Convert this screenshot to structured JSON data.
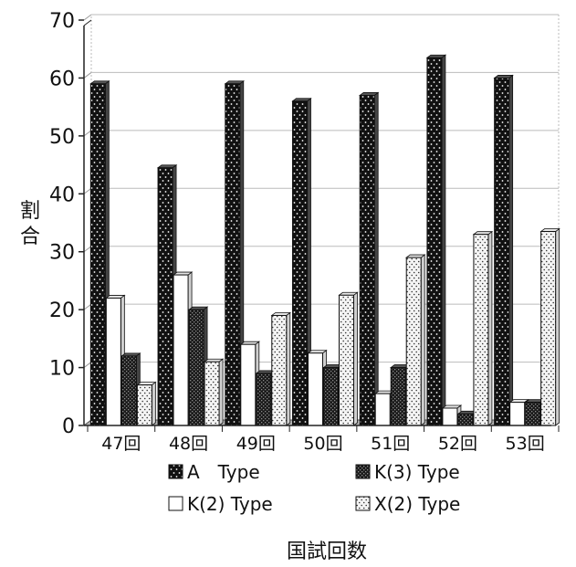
{
  "chart_data": {
    "type": "bar",
    "categories": [
      "47回",
      "48回",
      "49回",
      "50回",
      "51回",
      "52回",
      "53回"
    ],
    "series": [
      {
        "name": "A　Type",
        "values": [
          59,
          44.5,
          59,
          56,
          57,
          63.5,
          60
        ]
      },
      {
        "name": "K(3) Type",
        "values": [
          12,
          20,
          9,
          10,
          10,
          2,
          4
        ]
      },
      {
        "name": "K(2) Type",
        "values": [
          22,
          26,
          14,
          12.5,
          5.5,
          3,
          4
        ]
      },
      {
        "name": "X(2) Type",
        "values": [
          7,
          11,
          19,
          22.5,
          29,
          33,
          33.5
        ]
      }
    ],
    "draw_order": [
      0,
      2,
      1,
      3
    ],
    "xlabel": "国試回数",
    "ylabel": "割合",
    "ylim": [
      0,
      70
    ],
    "yticks": [
      "0",
      "10",
      "20",
      "30",
      "40",
      "50",
      "60",
      "70"
    ],
    "grid": true,
    "legend_position": "bottom",
    "style": "3d-column",
    "colors": {
      "A Type": "#111111",
      "K(3) Type": "#262626",
      "K(2) Type": "#ffffff",
      "X(2) Type": "#f2f2f2",
      "grid": "#bbbbbb",
      "floor": "#aaaaaa"
    },
    "patterns": [
      "dots-on-black",
      "checker-dark",
      "white",
      "dots-on-white"
    ]
  }
}
